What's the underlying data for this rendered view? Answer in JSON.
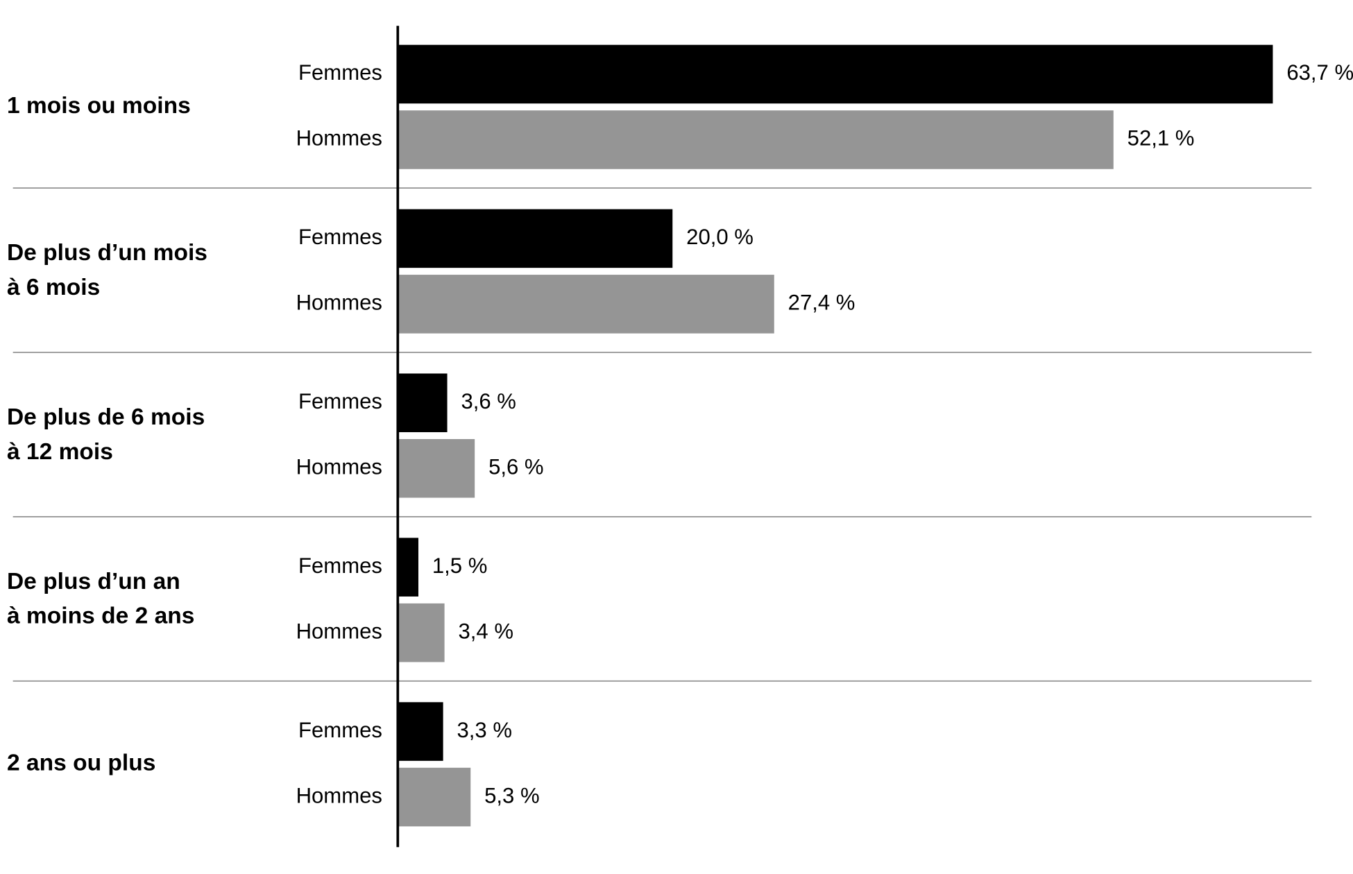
{
  "chart_data": {
    "type": "bar",
    "orientation": "horizontal",
    "categories": [
      [
        "1 mois ou moins"
      ],
      [
        "De plus d’un mois",
        "à 6 mois"
      ],
      [
        "De plus de 6 mois",
        "à 12 mois"
      ],
      [
        "De plus d’un an",
        "à moins de 2 ans"
      ],
      [
        "2 ans ou plus"
      ]
    ],
    "series": [
      {
        "name": "Femmes",
        "color": "#000000",
        "values": [
          63.7,
          20.0,
          3.6,
          1.5,
          3.3
        ],
        "value_labels": [
          "63,7 %",
          "20,0 %",
          "3,6 %",
          "1,5 %",
          "3,3 %"
        ]
      },
      {
        "name": "Hommes",
        "color": "#959595",
        "values": [
          52.1,
          27.4,
          5.6,
          3.4,
          5.3
        ],
        "value_labels": [
          "52,1 %",
          "27,4 %",
          "5,6 %",
          "3,4 %",
          "5,3 %"
        ]
      }
    ]
  }
}
